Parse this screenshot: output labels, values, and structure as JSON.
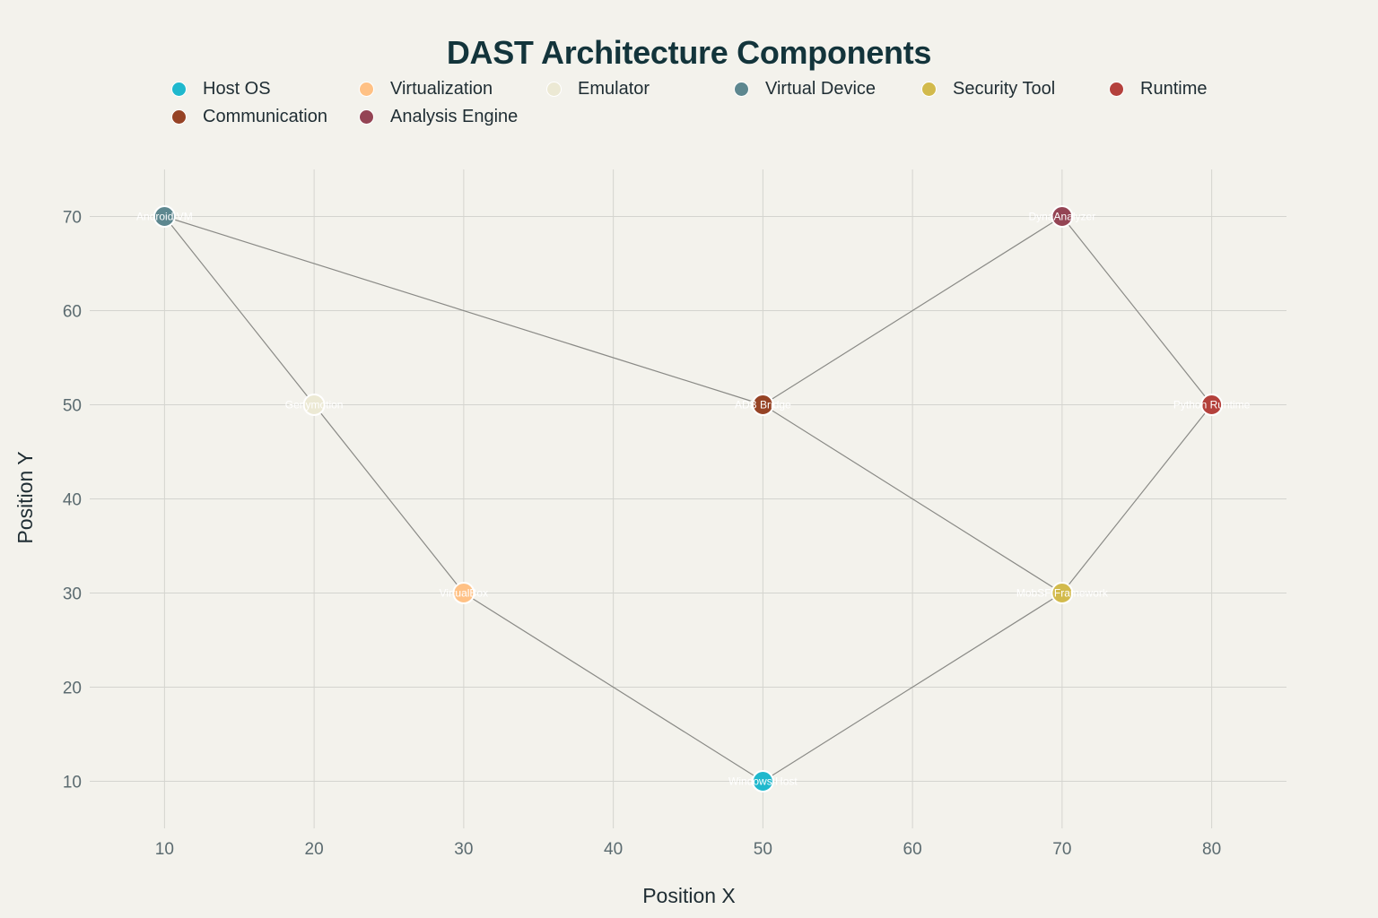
{
  "chart_data": {
    "type": "scatter",
    "title": "DAST Architecture Components",
    "xlabel": "Position X",
    "ylabel": "Position Y",
    "xlim": [
      5,
      85
    ],
    "ylim": [
      5,
      75
    ],
    "x_ticks": [
      10,
      20,
      30,
      40,
      50,
      60,
      70,
      80
    ],
    "y_ticks": [
      10,
      20,
      30,
      40,
      50,
      60,
      70
    ],
    "grid": true,
    "legend_position": "top",
    "legend": [
      {
        "name": "Host OS",
        "color": "#1fb8cd"
      },
      {
        "name": "Virtualization",
        "color": "#ffc185"
      },
      {
        "name": "Emulator",
        "color": "#ece9d4"
      },
      {
        "name": "Virtual Device",
        "color": "#5d878f"
      },
      {
        "name": "Security Tool",
        "color": "#d2ba4c"
      },
      {
        "name": "Runtime",
        "color": "#b4413c"
      },
      {
        "name": "Communication",
        "color": "#964325"
      },
      {
        "name": "Analysis Engine",
        "color": "#944454"
      }
    ],
    "points": [
      {
        "label": "Windows Host",
        "category": "Host OS",
        "x": 50,
        "y": 10
      },
      {
        "label": "VirtualBox",
        "category": "Virtualization",
        "x": 30,
        "y": 30
      },
      {
        "label": "Genymotion",
        "category": "Emulator",
        "x": 20,
        "y": 50
      },
      {
        "label": "Android VM",
        "category": "Virtual Device",
        "x": 10,
        "y": 70
      },
      {
        "label": "MobSF Framework",
        "category": "Security Tool",
        "x": 70,
        "y": 30
      },
      {
        "label": "Python Runtime",
        "category": "Runtime",
        "x": 80,
        "y": 50
      },
      {
        "label": "ADB Bridge",
        "category": "Communication",
        "x": 50,
        "y": 50
      },
      {
        "label": "DynaAnalyzer",
        "category": "Analysis Engine",
        "x": 70,
        "y": 70
      }
    ],
    "edges": [
      [
        "Windows Host",
        "VirtualBox"
      ],
      [
        "VirtualBox",
        "Genymotion"
      ],
      [
        "Genymotion",
        "Android VM"
      ],
      [
        "Android VM",
        "ADB Bridge"
      ],
      [
        "ADB Bridge",
        "MobSF Framework"
      ],
      [
        "Windows Host",
        "MobSF Framework"
      ],
      [
        "MobSF Framework",
        "Python Runtime"
      ],
      [
        "Python Runtime",
        "DynaAnalyzer"
      ],
      [
        "DynaAnalyzer",
        "ADB Bridge"
      ]
    ]
  }
}
